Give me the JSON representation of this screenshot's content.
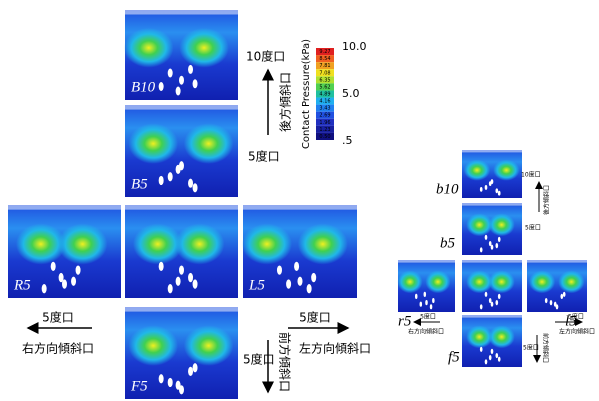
{
  "main": {
    "panels": [
      "B10",
      "B5",
      "R5",
      "L5",
      "F5"
    ],
    "labels": {
      "back10": "10度口",
      "back5": "5度口",
      "back_dir": "後方傾斜口",
      "right5": "5度口",
      "right_dir": "右方向傾斜口",
      "left5": "5度口",
      "left_dir": "左方向傾斜口",
      "front5": "5度口",
      "front_dir": "前方傾斜口"
    }
  },
  "colorbar": {
    "title": "Contact Pressure(kPa)",
    "max": "10.0",
    "mid": "5.0",
    "min": ".5",
    "levels": [
      "9.27",
      "8.54",
      "7.81",
      "7.08",
      "6.35",
      "5.62",
      "4.89",
      "4.16",
      "3.43",
      "2.69",
      "1.96",
      "1.23",
      "0.50"
    ]
  },
  "thumbnail": {
    "panels": [
      "b10",
      "b5",
      "r5",
      "l5",
      "f5"
    ],
    "labels": {
      "back10": "10度口",
      "back_dir": "後方傾斜口",
      "back5": "5度口",
      "right5": "5度口",
      "right_dir": "右方向傾斜口",
      "left5": "5度口",
      "left_dir": "左方向傾斜口",
      "front5": "5度口",
      "front_dir": "前方傾斜口"
    }
  }
}
